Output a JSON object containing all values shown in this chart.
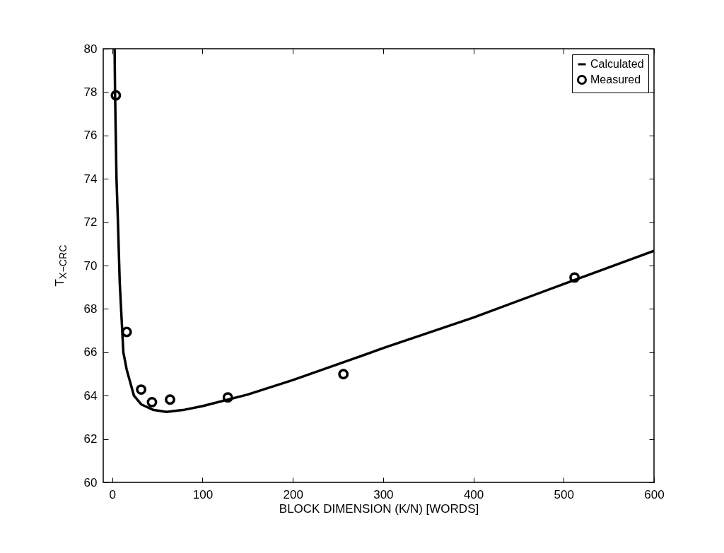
{
  "chart_data": {
    "type": "line",
    "xlabel": "BLOCK DIMENSION (K/N) [WORDS]",
    "ylabel": "T$_{X−CRC}$",
    "xlim": [
      -10,
      600
    ],
    "ylim": [
      60,
      80
    ],
    "xticks": [
      0,
      100,
      200,
      300,
      400,
      500,
      600
    ],
    "yticks": [
      60,
      62,
      64,
      66,
      68,
      70,
      72,
      74,
      76,
      78,
      80
    ],
    "grid": false,
    "legend": "top right",
    "series": [
      {
        "name": "Calculated",
        "type": "line",
        "color": "#000000",
        "line_style": "solid",
        "x": [
          2.6,
          3.1,
          4.7,
          6.3,
          8.3,
          12.3,
          16,
          24,
          32,
          45,
          60,
          80,
          100,
          150,
          200,
          250,
          300,
          400,
          500,
          600
        ],
        "values": [
          80,
          78,
          74,
          72,
          69.2,
          66,
          65.2,
          64,
          63.6,
          63.35,
          63.25,
          63.35,
          63.52,
          64.05,
          64.72,
          65.45,
          66.19,
          67.6,
          69.15,
          70.68
        ]
      },
      {
        "name": "Measured",
        "type": "scatter",
        "color": "#000000",
        "marker": "circle",
        "x": [
          4,
          16,
          32,
          44,
          64,
          128,
          256,
          512
        ],
        "values": [
          77.85,
          66.94,
          64.28,
          63.7,
          63.82,
          63.92,
          64.99,
          69.45
        ]
      }
    ]
  }
}
